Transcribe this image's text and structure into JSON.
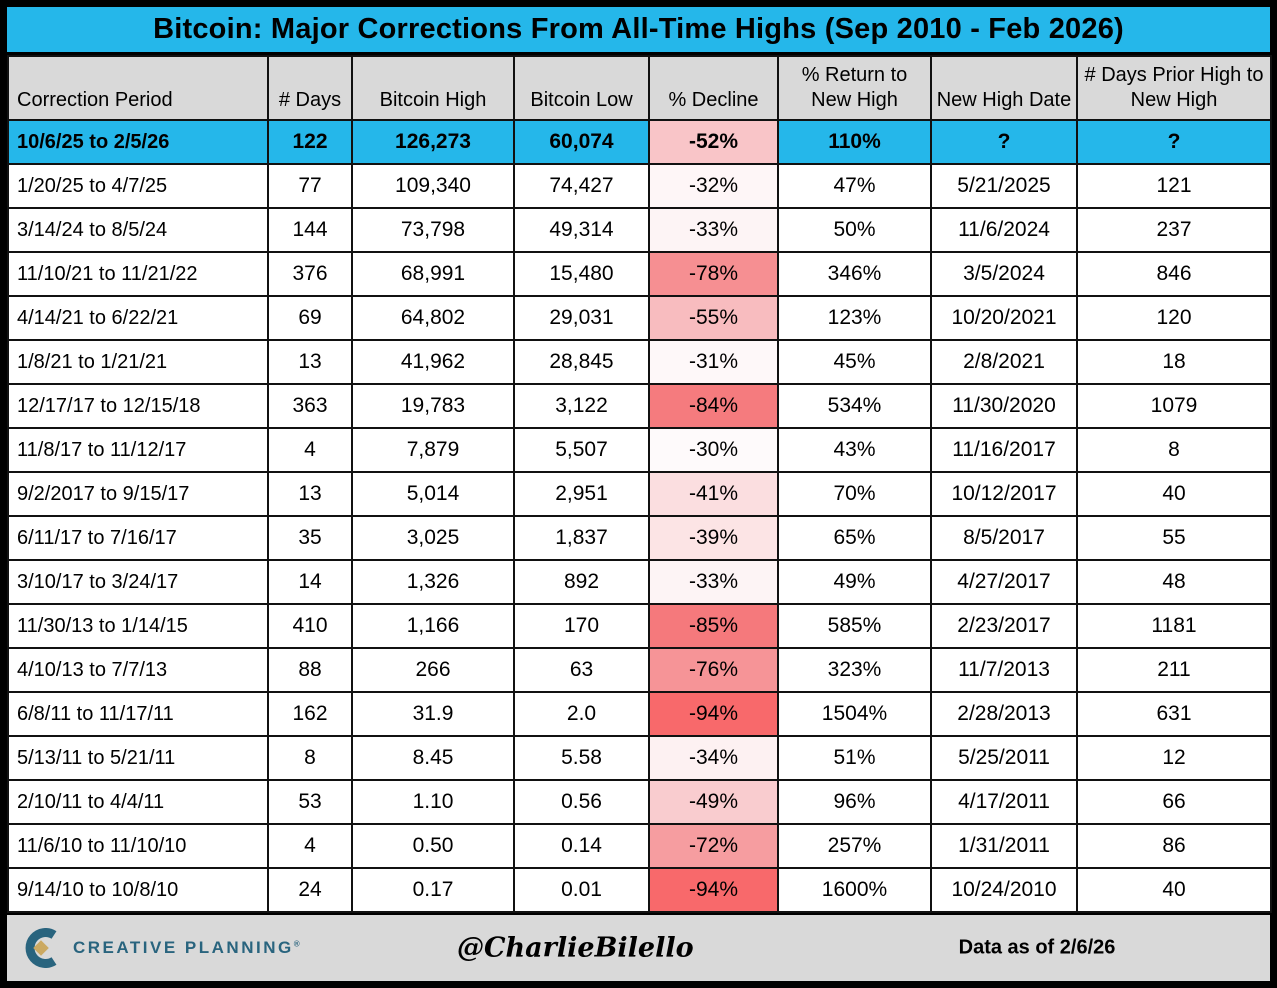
{
  "title": "Bitcoin: Major Corrections From All-Time Highs (Sep 2010 - Feb 2026)",
  "colors": {
    "accent_cyan": "#25B7EA",
    "header_gray": "#D9D9D9",
    "decline_max_red": "#F8696B",
    "brand_teal": "#29647E",
    "brand_gold": "#CBA961",
    "border_black": "#111111"
  },
  "chart_data": {
    "type": "table",
    "title": "Bitcoin: Major Corrections From All-Time Highs (Sep 2010 - Feb 2026)",
    "columns": [
      "Correction Period",
      "# Days",
      "Bitcoin High",
      "Bitcoin Low",
      "% Decline",
      "% Return to New High",
      "New High Date",
      "# Days Prior High to New High"
    ],
    "rows": [
      {
        "period": "10/6/25 to 2/5/26",
        "days": "122",
        "high": "126,273",
        "low": "60,074",
        "decline": "-52%",
        "return_to_new_high": "110%",
        "new_high_date": "?",
        "days_prior": "?",
        "decline_bg": "#F9C5C8",
        "highlight": true
      },
      {
        "period": "1/20/25 to 4/7/25",
        "days": "77",
        "high": "109,340",
        "low": "74,427",
        "decline": "-32%",
        "return_to_new_high": "47%",
        "new_high_date": "5/21/2025",
        "days_prior": "121",
        "decline_bg": "#FEF6F7",
        "highlight": false
      },
      {
        "period": "3/14/24 to 8/5/24",
        "days": "144",
        "high": "73,798",
        "low": "49,314",
        "decline": "-33%",
        "return_to_new_high": "50%",
        "new_high_date": "11/6/2024",
        "days_prior": "237",
        "decline_bg": "#FDF4F5",
        "highlight": false
      },
      {
        "period": "11/10/21 to 11/21/22",
        "days": "376",
        "high": "68,991",
        "low": "15,480",
        "decline": "-78%",
        "return_to_new_high": "346%",
        "new_high_date": "3/5/2024",
        "days_prior": "846",
        "decline_bg": "#F68F92",
        "highlight": false
      },
      {
        "period": "4/14/21 to 6/22/21",
        "days": "69",
        "high": "64,802",
        "low": "29,031",
        "decline": "-55%",
        "return_to_new_high": "123%",
        "new_high_date": "10/20/2021",
        "days_prior": "120",
        "decline_bg": "#F8BCBF",
        "highlight": false
      },
      {
        "period": "1/8/21 to 1/21/21",
        "days": "13",
        "high": "41,962",
        "low": "28,845",
        "decline": "-31%",
        "return_to_new_high": "45%",
        "new_high_date": "2/8/2021",
        "days_prior": "18",
        "decline_bg": "#FEF8F9",
        "highlight": false
      },
      {
        "period": "12/17/17 to 12/15/18",
        "days": "363",
        "high": "19,783",
        "low": "3,122",
        "decline": "-84%",
        "return_to_new_high": "534%",
        "new_high_date": "11/30/2020",
        "days_prior": "1079",
        "decline_bg": "#F57B7E",
        "highlight": false
      },
      {
        "period": "11/8/17 to 11/12/17",
        "days": "4",
        "high": "7,879",
        "low": "5,507",
        "decline": "-30%",
        "return_to_new_high": "43%",
        "new_high_date": "11/16/2017",
        "days_prior": "8",
        "decline_bg": "#FEFAFB",
        "highlight": false
      },
      {
        "period": "9/2/2017 to 9/15/17",
        "days": "13",
        "high": "5,014",
        "low": "2,951",
        "decline": "-41%",
        "return_to_new_high": "70%",
        "new_high_date": "10/12/2017",
        "days_prior": "40",
        "decline_bg": "#FBDEE0",
        "highlight": false
      },
      {
        "period": "6/11/17 to 7/16/17",
        "days": "35",
        "high": "3,025",
        "low": "1,837",
        "decline": "-39%",
        "return_to_new_high": "65%",
        "new_high_date": "8/5/2017",
        "days_prior": "55",
        "decline_bg": "#FCE4E5",
        "highlight": false
      },
      {
        "period": "3/10/17 to 3/24/17",
        "days": "14",
        "high": "1,326",
        "low": "892",
        "decline": "-33%",
        "return_to_new_high": "49%",
        "new_high_date": "4/27/2017",
        "days_prior": "48",
        "decline_bg": "#FDF4F5",
        "highlight": false
      },
      {
        "period": "11/30/13 to 1/14/15",
        "days": "410",
        "high": "1,166",
        "low": "170",
        "decline": "-85%",
        "return_to_new_high": "585%",
        "new_high_date": "2/23/2017",
        "days_prior": "1181",
        "decline_bg": "#F5797C",
        "highlight": false
      },
      {
        "period": "4/10/13 to 7/7/13",
        "days": "88",
        "high": "266",
        "low": "63",
        "decline": "-76%",
        "return_to_new_high": "323%",
        "new_high_date": "11/7/2013",
        "days_prior": "211",
        "decline_bg": "#F69497",
        "highlight": false
      },
      {
        "period": "6/8/11 to 11/17/11",
        "days": "162",
        "high": "31.9",
        "low": "2.0",
        "decline": "-94%",
        "return_to_new_high": "1504%",
        "new_high_date": "2/28/2013",
        "days_prior": "631",
        "decline_bg": "#F8696B",
        "highlight": false
      },
      {
        "period": "5/13/11 to 5/21/11",
        "days": "8",
        "high": "8.45",
        "low": "5.58",
        "decline": "-34%",
        "return_to_new_high": "51%",
        "new_high_date": "5/25/2011",
        "days_prior": "12",
        "decline_bg": "#FDF1F2",
        "highlight": false
      },
      {
        "period": "2/10/11 to 4/4/11",
        "days": "53",
        "high": "1.10",
        "low": "0.56",
        "decline": "-49%",
        "return_to_new_high": "96%",
        "new_high_date": "4/17/2011",
        "days_prior": "66",
        "decline_bg": "#F9CCCF",
        "highlight": false
      },
      {
        "period": "11/6/10 to 11/10/10",
        "days": "4",
        "high": "0.50",
        "low": "0.14",
        "decline": "-72%",
        "return_to_new_high": "257%",
        "new_high_date": "1/31/2011",
        "days_prior": "86",
        "decline_bg": "#F69DA0",
        "highlight": false
      },
      {
        "period": "9/14/10 to 10/8/10",
        "days": "24",
        "high": "0.17",
        "low": "0.01",
        "decline": "-94%",
        "return_to_new_high": "1600%",
        "new_high_date": "10/24/2010",
        "days_prior": "40",
        "decline_bg": "#F8696B",
        "highlight": false
      }
    ]
  },
  "footer": {
    "brand": "CREATIVE PLANNING",
    "registered": "®",
    "handle": "@CharlieBilello",
    "data_note": "Data as of 2/6/26"
  }
}
